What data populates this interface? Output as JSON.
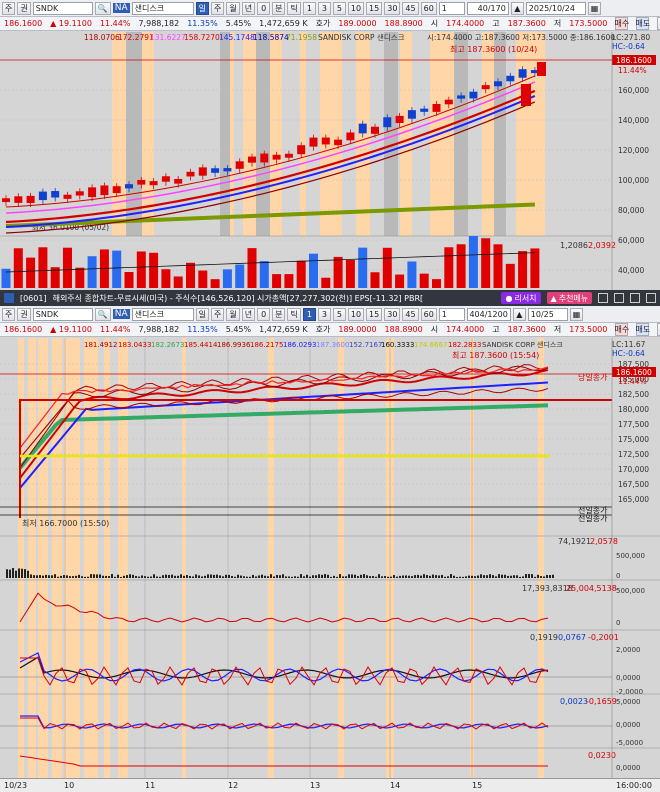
{
  "top": {
    "toolbar": {
      "market": "주",
      "type": "권",
      "symbol": "SNDK",
      "badge": "NA",
      "name": "샌디스크",
      "periods": [
        "일",
        "주",
        "월",
        "년",
        "0",
        "분",
        "틱"
      ],
      "minutes": [
        "1",
        "3",
        "5",
        "10",
        "15",
        "30",
        "45",
        "60",
        "1"
      ],
      "count": "40",
      "count_total": "/170",
      "date": "2025/10/24"
    },
    "quote": {
      "price": "186.1600",
      "change": "▲ 19.1100",
      "rate": "11.44%",
      "volume": "7,988,182",
      "vol_rate": "11.35%",
      "turn": "5.45%",
      "amount": "1,472,659 K",
      "ask_label": "호가",
      "ask": "189.0000",
      "bid": "188.8900",
      "open_label": "시",
      "open": "174.4000",
      "high_label": "고",
      "high": "187.3600",
      "low_label": "저",
      "low": "173.5000",
      "buy": "매수",
      "sell": "매도",
      "flat": "평"
    },
    "legend": {
      "ma": [
        "118.0706",
        "172.2791",
        "131.6227",
        "158.7270",
        "145.1748",
        "118.5874",
        "71.1958"
      ],
      "ma_colors": [
        "#b00000",
        "#d10000",
        "#ff44ff",
        "#e00000",
        "#2020ff",
        "#0000a0",
        "#88a000"
      ],
      "name": "SANDISK CORP 샌디스크",
      "ohlc": "시:174.4000 고:187.3600 저:173.5000 종:186.1600"
    },
    "lc": "LC:271.80",
    "hc": "HC:-0.64",
    "high_note": "최고 187.3600 (10/24)",
    "low_note": "최저 36.0100 (05/02)",
    "price_tag": "186.1600",
    "pct_tag": "11.44%",
    "y_ticks": [
      "160,000",
      "140,000",
      "120,000",
      "100,000",
      "80,000",
      "60,000",
      "40,000"
    ],
    "volume_label": "1,2086",
    "volume_label2": "2,0392"
  },
  "title": {
    "win_id": "[0601]",
    "text": "해외주식 종합차트-무료시세(미국) - 주식수[146,526,120] 시가총액[27,277,302(천)] EPS[-11.32] PBR[",
    "btn1": "리서치",
    "btn2": "추천메뉴"
  },
  "bottom": {
    "toolbar": {
      "market": "주",
      "type": "권",
      "symbol": "SNDK",
      "badge": "NA",
      "name": "샌디스크",
      "periods": [
        "일",
        "주",
        "월",
        "년",
        "0",
        "분",
        "틱"
      ],
      "minutes": [
        "1",
        "3",
        "5",
        "10",
        "15",
        "30",
        "45",
        "60",
        "1"
      ],
      "count": "404",
      "count_total": "/1200",
      "date": "10/25"
    },
    "quote": {
      "price": "186.1600",
      "change": "▲ 19.1100",
      "rate": "11.44%",
      "volume": "7,988,182",
      "vol_rate": "11.35%",
      "turn": "5.45%",
      "amount": "1,472,659 K",
      "ask_label": "호가",
      "ask": "189.0000",
      "bid": "188.8900",
      "open_label": "시",
      "open": "174.4000",
      "high_label": "고",
      "high": "187.3600",
      "low_label": "저",
      "low": "173.5000",
      "buy": "매수",
      "sell": "매도",
      "flat": "평"
    },
    "legend": {
      "ma": [
        "181.4912",
        "183.0433",
        "182.2673",
        "185.4414",
        "186.9936",
        "186.2175",
        "186.0293",
        "187.3600",
        "152.7167",
        "160.3333",
        "174.6667",
        "182.2833"
      ],
      "ma_colors": [
        "#b00000",
        "#d10000",
        "#33aa55",
        "#d10000",
        "#b00000",
        "#d10000",
        "#2020ff",
        "#8080ff",
        "#4040c0",
        "#111111",
        "#c8c800",
        "#d10000"
      ],
      "name": "SANDISK CORP 샌디스크"
    },
    "lc": "LC:11.67",
    "hc": "HC:-0.64",
    "high_note": "최고 187.3600 (15:54)",
    "low_note": "최저 166.7000 (15:50)",
    "price_tag": "186.1600",
    "pct_tag": "11.44%",
    "day_label": "당일종가",
    "prev_label": "전일종가",
    "prev_label2": "전일종가",
    "y_ticks": [
      "187,500",
      "185,000",
      "182,500",
      "180,000",
      "177,500",
      "175,000",
      "172,500",
      "170,000",
      "167,500",
      "165,000"
    ],
    "vol_labels": [
      "74,1921",
      "2,0578"
    ],
    "vol_ticks": [
      "500,000",
      "0"
    ],
    "amt_labels": [
      "17,393,8318",
      "25,004,5138"
    ],
    "amt_ticks": [
      "500,000",
      "0"
    ],
    "osc1_labels": [
      "0,1919",
      "0,0767",
      "-0,2001"
    ],
    "osc1_ticks": [
      "2,0000",
      "0,0000",
      "-2,0000"
    ],
    "osc2_labels": [
      "0,0023",
      "-0,1659"
    ],
    "osc2_ticks": [
      "5,0000",
      "0,0000",
      "-5,0000"
    ],
    "osc3_labels": [
      "0,0230"
    ],
    "osc3_ticks": [
      "0,0000"
    ],
    "x_dates": [
      "10/23",
      "10",
      "11",
      "12",
      "13",
      "14",
      "15"
    ],
    "x_end": "16:00:00"
  }
}
